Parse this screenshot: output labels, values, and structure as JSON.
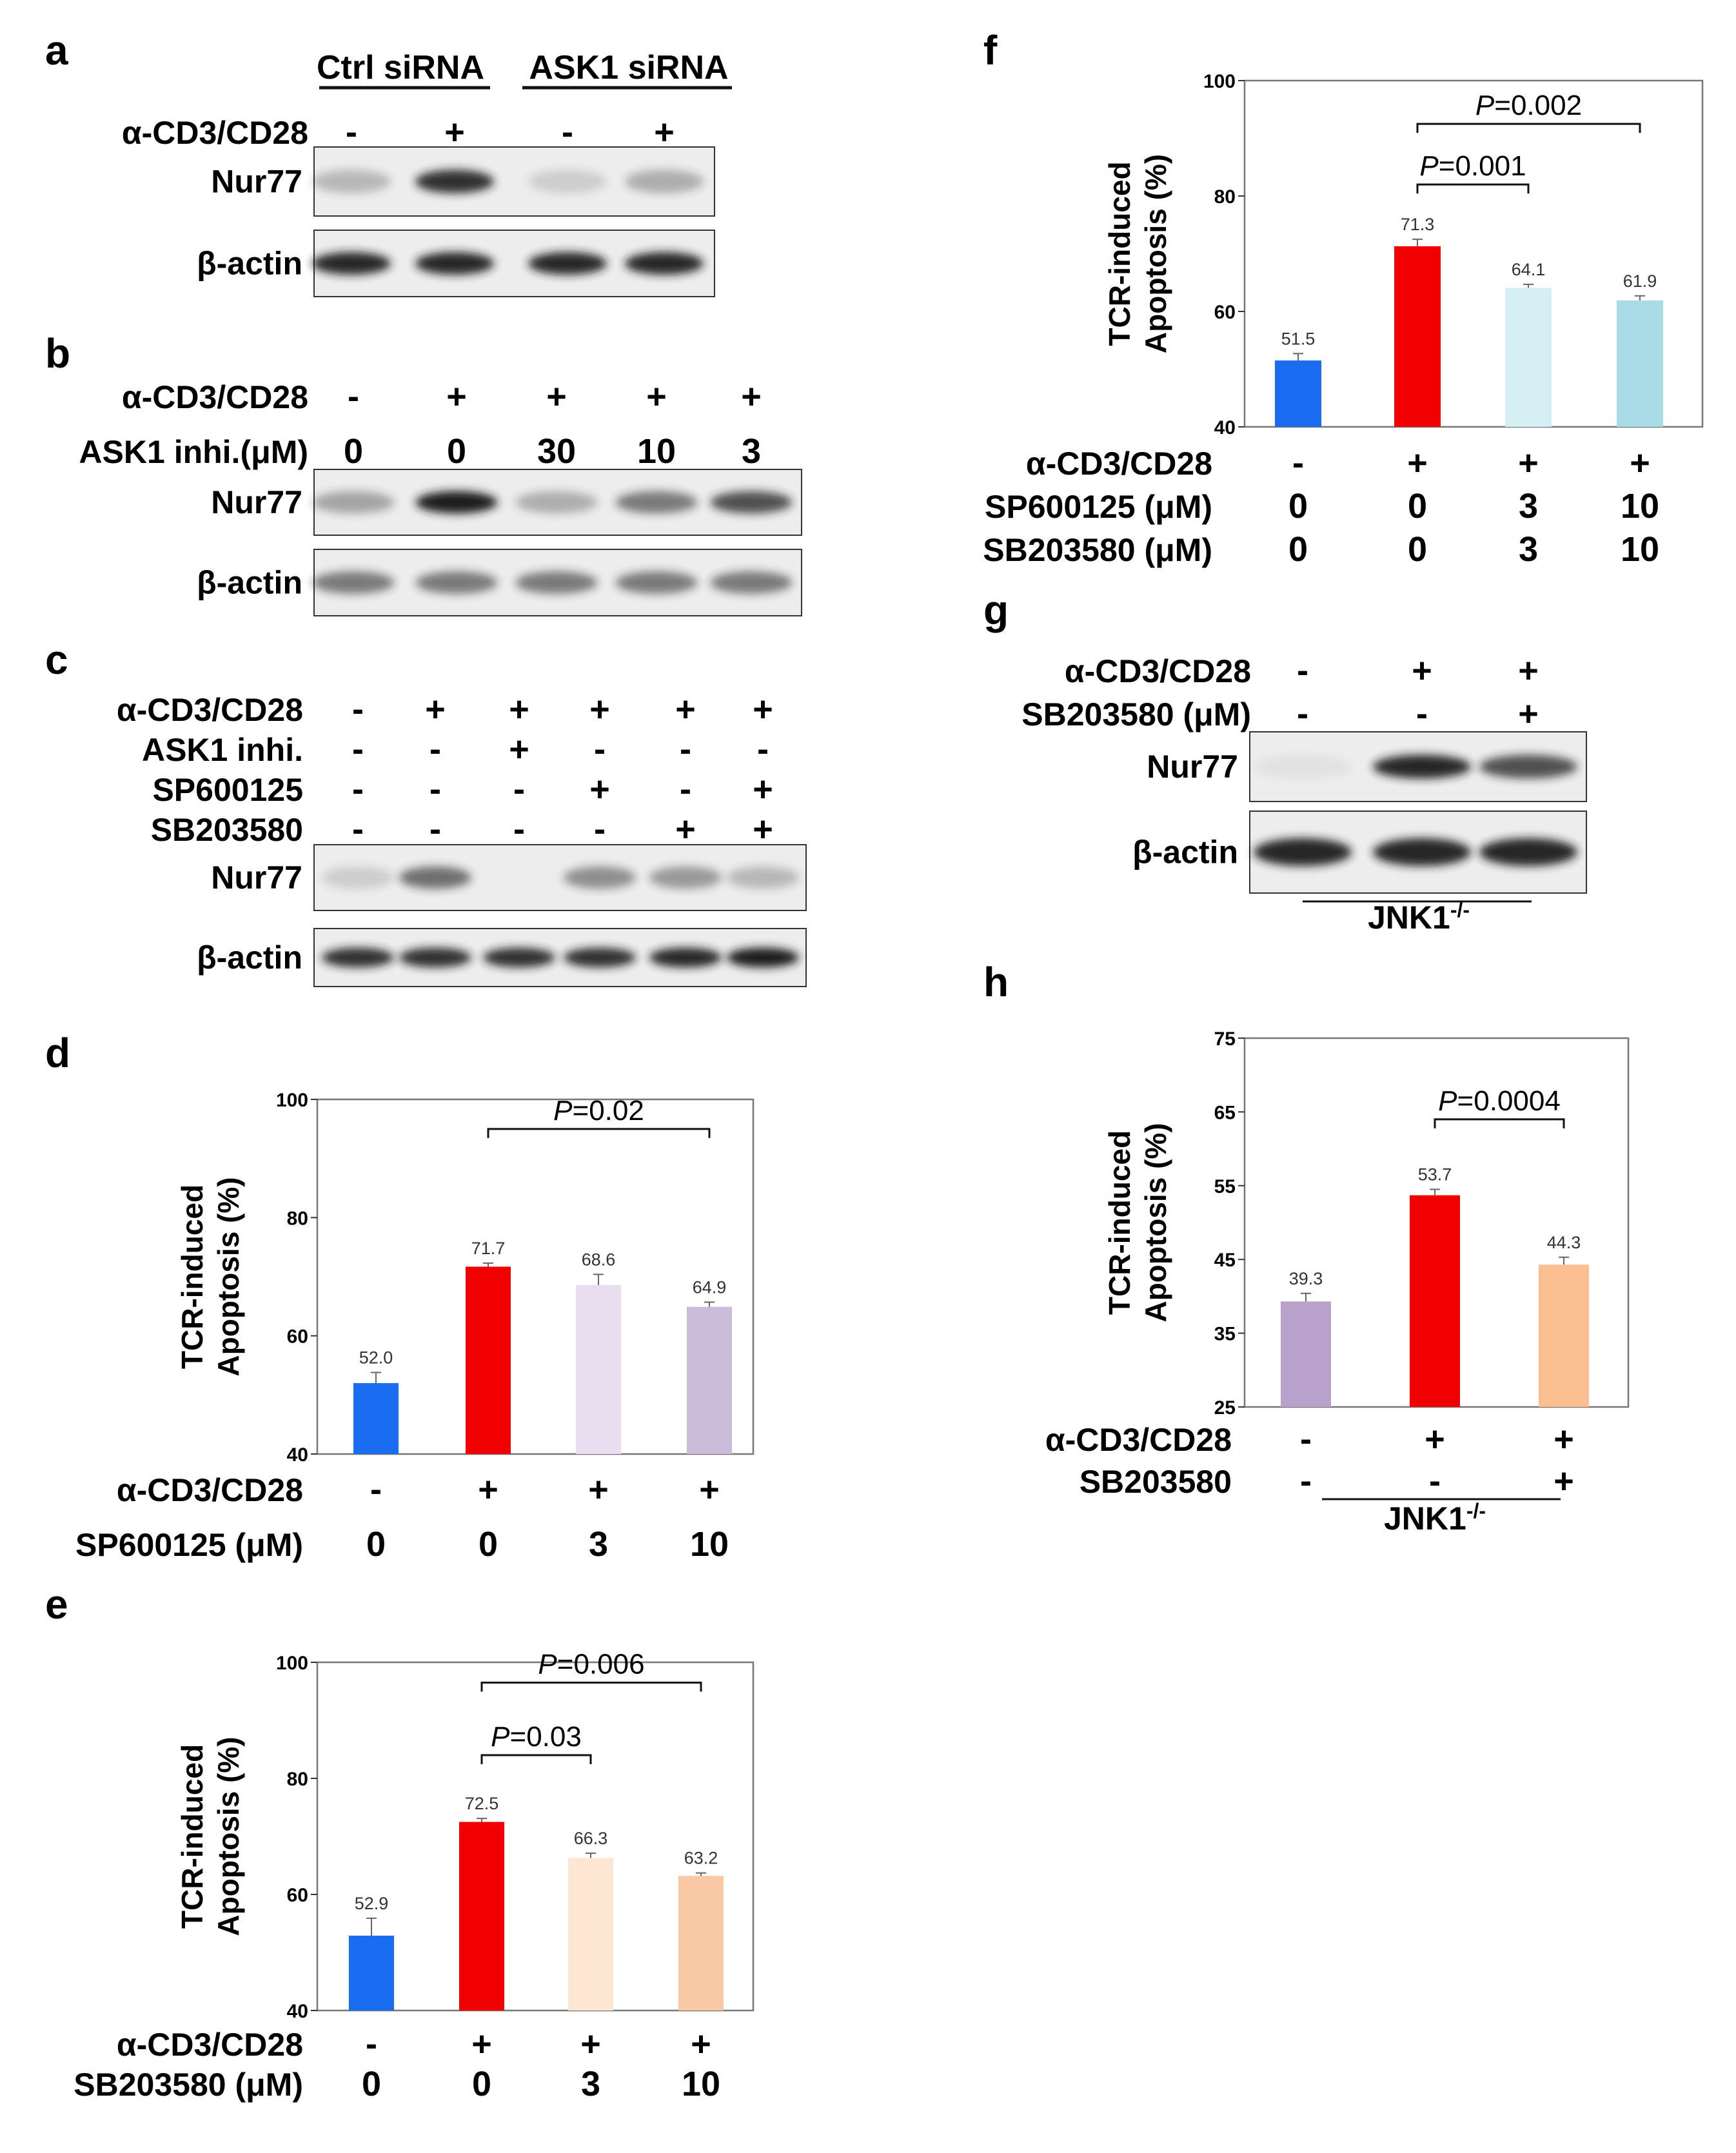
{
  "colors": {
    "blue": "#1a6cf0",
    "red": "#f00000",
    "lavender_light": "#e8deef",
    "lavender": "#cbbcdb",
    "peach_light": "#fde6d2",
    "peach": "#f9c9a6",
    "cyan_light": "#d6eff5",
    "cyan": "#a9dce6",
    "purple": "#b8a2cc",
    "orange": "#fbbf91",
    "blot_bg": "#ededed",
    "blot_band": "#1a1a1a"
  },
  "panel_a": {
    "label": "a",
    "headers": [
      "Ctrl siRNA",
      "ASK1 siRNA"
    ],
    "rows": [
      {
        "label": "α-CD3/CD28",
        "signs": [
          "-",
          "+",
          "-",
          "+"
        ]
      }
    ],
    "blots": [
      {
        "label": "Nur77",
        "intensities": [
          0.25,
          0.9,
          0.15,
          0.3
        ]
      },
      {
        "label": "β-actin",
        "intensities": [
          0.95,
          0.95,
          0.95,
          0.95
        ]
      }
    ]
  },
  "panel_b": {
    "label": "b",
    "rows": [
      {
        "label": "α-CD3/CD28",
        "signs": [
          "-",
          "+",
          "+",
          "+",
          "+"
        ]
      },
      {
        "label": "ASK1 inhi.(μM)",
        "signs": [
          "0",
          "0",
          "30",
          "10",
          "3"
        ]
      }
    ],
    "blots": [
      {
        "label": "Nur77",
        "intensities": [
          0.35,
          1.0,
          0.3,
          0.55,
          0.75
        ]
      },
      {
        "label": "β-actin",
        "intensities": [
          0.55,
          0.55,
          0.55,
          0.55,
          0.55
        ]
      }
    ]
  },
  "panel_c": {
    "label": "c",
    "rows": [
      {
        "label": "α-CD3/CD28",
        "signs": [
          "-",
          "+",
          "+",
          "+",
          "+",
          "+"
        ]
      },
      {
        "label": "ASK1 inhi.",
        "signs": [
          "-",
          "-",
          "+",
          "-",
          "-",
          "-"
        ]
      },
      {
        "label": "SP600125",
        "signs": [
          "-",
          "-",
          "-",
          "+",
          "-",
          "+"
        ]
      },
      {
        "label": "SB203580",
        "signs": [
          "-",
          "-",
          "-",
          "-",
          "+",
          "+"
        ]
      }
    ],
    "blots": [
      {
        "label": "Nur77",
        "intensities": [
          0.15,
          0.6,
          0.0,
          0.45,
          0.4,
          0.25
        ]
      },
      {
        "label": "β-actin",
        "intensities": [
          0.9,
          0.9,
          0.9,
          0.9,
          0.95,
          1.0
        ]
      }
    ]
  },
  "panel_g": {
    "label": "g",
    "rows": [
      {
        "label": "α-CD3/CD28",
        "signs": [
          "-",
          "+",
          "+"
        ]
      },
      {
        "label": "SB203580 (μM)",
        "signs": [
          "-",
          "-",
          "+"
        ]
      }
    ],
    "blots": [
      {
        "label": "Nur77",
        "intensities": [
          0.05,
          0.95,
          0.75
        ]
      },
      {
        "label": "β-actin",
        "intensities": [
          0.95,
          0.95,
          0.95
        ]
      }
    ],
    "footer": "JNK1",
    "footer_sup": "-/-"
  },
  "chart_data": [
    {
      "panel": "d",
      "type": "bar",
      "ylabel_line1": "TCR-induced",
      "ylabel_line2": "Apoptosis (%)",
      "ylim": [
        40,
        100
      ],
      "yticks": [
        40,
        60,
        80,
        100
      ],
      "values": [
        52.0,
        71.7,
        68.6,
        64.9
      ],
      "value_labels": [
        "52.0",
        "71.7",
        "68.6",
        "64.9"
      ],
      "errors": [
        1.8,
        0.6,
        1.8,
        0.8
      ],
      "colors": [
        "#1a6cf0",
        "#f00000",
        "#e8deef",
        "#cbbcdb"
      ],
      "rows": [
        {
          "label": "α-CD3/CD28",
          "signs": [
            "-",
            "+",
            "+",
            "+"
          ]
        },
        {
          "label": "SP600125 (μM)",
          "signs": [
            "0",
            "0",
            "3",
            "10"
          ]
        }
      ],
      "brackets": [
        {
          "from": 1,
          "to": 3,
          "y": 95,
          "p_prefix": "P",
          "p_rest": "=0.02"
        }
      ]
    },
    {
      "panel": "e",
      "type": "bar",
      "ylabel_line1": "TCR-induced",
      "ylabel_line2": "Apoptosis (%)",
      "ylim": [
        40,
        100
      ],
      "yticks": [
        40,
        60,
        80,
        100
      ],
      "values": [
        52.9,
        72.5,
        66.3,
        63.2
      ],
      "value_labels": [
        "52.9",
        "72.5",
        "66.3",
        "63.2"
      ],
      "errors": [
        3.0,
        0.6,
        0.8,
        0.5
      ],
      "colors": [
        "#1a6cf0",
        "#f00000",
        "#fde6d2",
        "#f9c9a6"
      ],
      "rows": [
        {
          "label": "α-CD3/CD28",
          "signs": [
            "-",
            "+",
            "+",
            "+"
          ]
        },
        {
          "label": "SB203580 (μM)",
          "signs": [
            "0",
            "0",
            "3",
            "10"
          ]
        }
      ],
      "brackets": [
        {
          "from": 1,
          "to": 2,
          "y": 84,
          "p_prefix": "P",
          "p_rest": "=0.03"
        },
        {
          "from": 1,
          "to": 3,
          "y": 96.5,
          "p_prefix": "P",
          "p_rest": "=0.006"
        }
      ]
    },
    {
      "panel": "f",
      "type": "bar",
      "ylabel_line1": "TCR-induced",
      "ylabel_line2": "Apoptosis (%)",
      "ylim": [
        40,
        100
      ],
      "yticks": [
        40,
        60,
        80,
        100
      ],
      "values": [
        51.5,
        71.3,
        64.1,
        61.9
      ],
      "value_labels": [
        "51.5",
        "71.3",
        "64.1",
        "61.9"
      ],
      "errors": [
        1.2,
        1.2,
        0.6,
        0.8
      ],
      "colors": [
        "#1a6cf0",
        "#f00000",
        "#d6eff5",
        "#a9dce6"
      ],
      "rows": [
        {
          "label": "α-CD3/CD28",
          "signs": [
            "-",
            "+",
            "+",
            "+"
          ]
        },
        {
          "label": "SP600125 (μM)",
          "signs": [
            "0",
            "0",
            "3",
            "10"
          ]
        },
        {
          "label": "SB203580 (μM)",
          "signs": [
            "0",
            "0",
            "3",
            "10"
          ]
        }
      ],
      "brackets": [
        {
          "from": 1,
          "to": 2,
          "y": 82,
          "p_prefix": "P",
          "p_rest": "=0.001"
        },
        {
          "from": 1,
          "to": 3,
          "y": 92.5,
          "p_prefix": "P",
          "p_rest": "=0.002"
        }
      ]
    },
    {
      "panel": "h",
      "type": "bar",
      "ylabel_line1": "TCR-induced",
      "ylabel_line2": "Apoptosis (%)",
      "ylim": [
        25,
        75
      ],
      "yticks": [
        25,
        35,
        45,
        55,
        65,
        75
      ],
      "values": [
        39.3,
        53.7,
        44.3
      ],
      "value_labels": [
        "39.3",
        "53.7",
        "44.3"
      ],
      "errors": [
        1.1,
        0.8,
        1.0
      ],
      "colors": [
        "#b8a2cc",
        "#f00000",
        "#fbbf91"
      ],
      "rows": [
        {
          "label": "α-CD3/CD28",
          "signs": [
            "-",
            "+",
            "+"
          ]
        },
        {
          "label": "SB203580",
          "signs": [
            "-",
            "-",
            "+"
          ]
        }
      ],
      "brackets": [
        {
          "from": 1,
          "to": 2,
          "y": 64,
          "p_prefix": "P",
          "p_rest": "=0.0004"
        }
      ],
      "footer": "JNK1",
      "footer_sup": "-/-"
    }
  ]
}
